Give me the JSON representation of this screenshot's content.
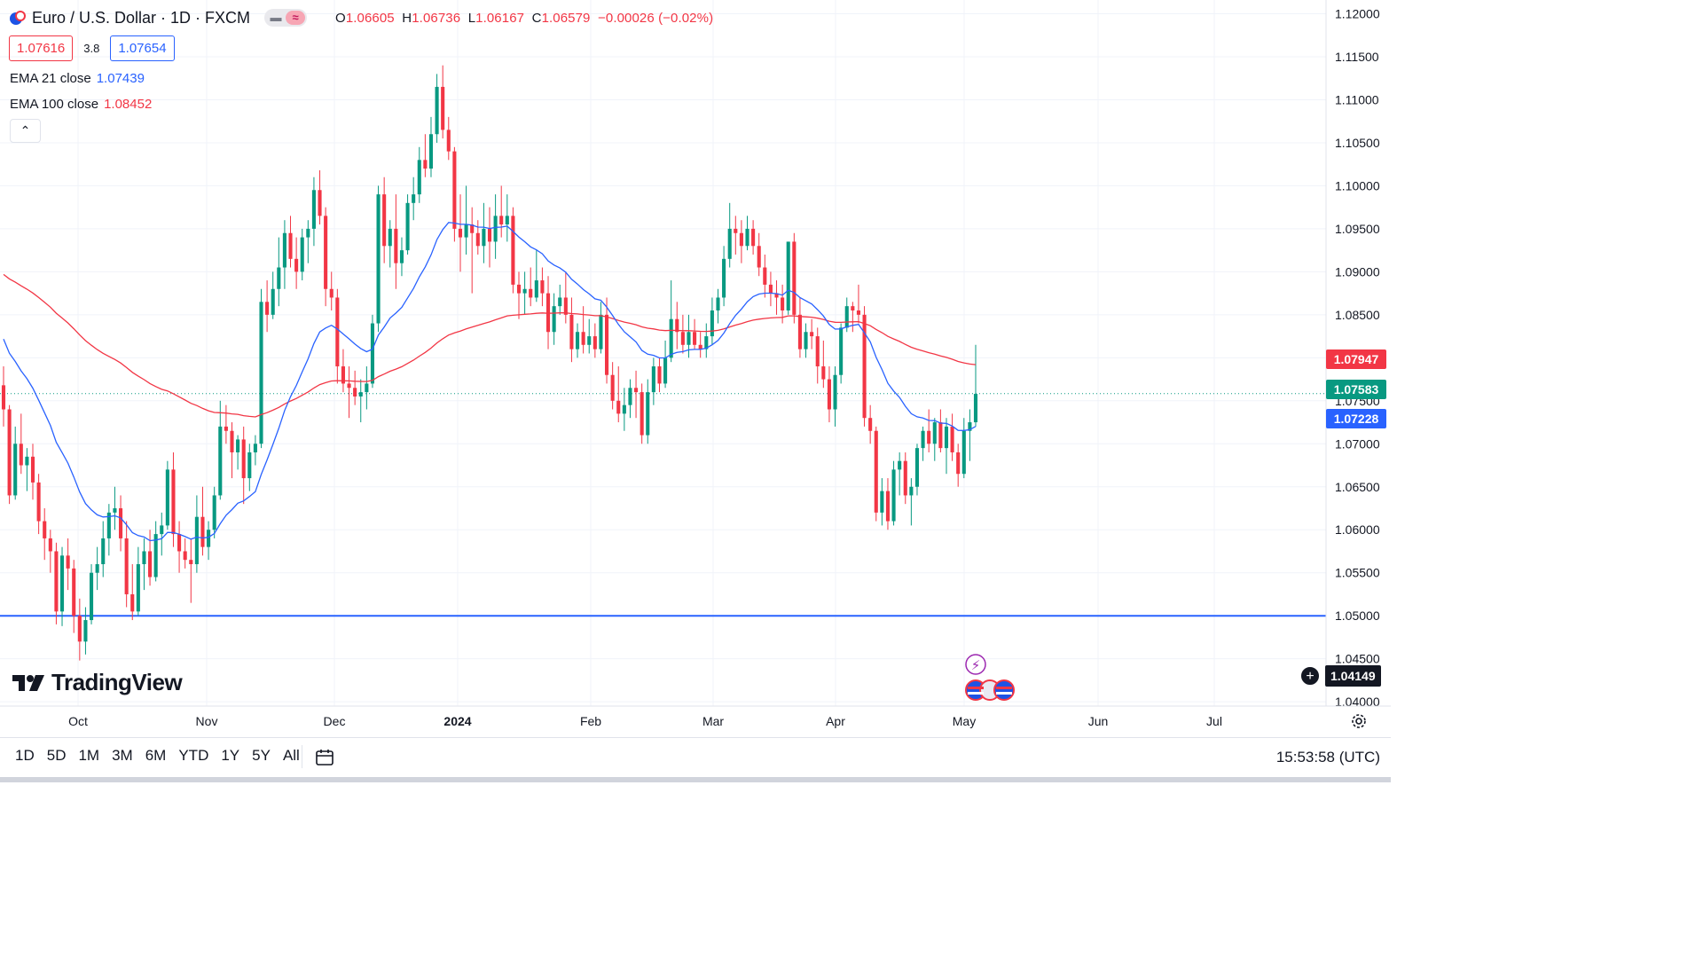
{
  "header": {
    "title": "Euro / U.S. Dollar · 1D · FXCM",
    "ohlc": {
      "o_label": "O",
      "o_value": "1.06605",
      "h_label": "H",
      "h_value": "1.06736",
      "l_label": "L",
      "l_value": "1.06167",
      "c_label": "C",
      "c_value": "1.06579",
      "change": "−0.00026 (−0.02%)"
    },
    "bid": "1.07616",
    "spread": "3.8",
    "ask": "1.07654",
    "pill_a": "▬",
    "pill_b": "≈"
  },
  "indicators": {
    "ema21_label": "EMA 21 close",
    "ema21_value": "1.07439",
    "ema100_label": "EMA 100 close",
    "ema100_value": "1.08452",
    "collapse_icon": "chevron-up-icon",
    "collapse_glyph": "⌃"
  },
  "price_tags": {
    "ema100": "1.07947",
    "last": "1.07583",
    "ema21": "1.07228",
    "crosshair": "1.04149"
  },
  "colors": {
    "up": "#089981",
    "down": "#f23645",
    "ema21": "#2962ff",
    "ema100": "#f23645",
    "hline": "#2962ff",
    "grid": "#f0f3fa"
  },
  "logo_text": "TradingView",
  "bottom": {
    "ranges": [
      "1D",
      "5D",
      "1M",
      "3M",
      "6M",
      "YTD",
      "1Y",
      "5Y",
      "All"
    ],
    "clock": "15:53:58 (UTC)"
  },
  "chart_data": {
    "type": "candlestick",
    "title": "Euro / U.S. Dollar · 1D · FXCM",
    "y_ticks": [
      "1.12000",
      "1.11500",
      "1.11000",
      "1.10500",
      "1.10000",
      "1.09500",
      "1.09000",
      "1.08500",
      "1.08000",
      "1.07500",
      "1.07000",
      "1.06500",
      "1.06000",
      "1.05500",
      "1.05000",
      "1.04500",
      "1.04000"
    ],
    "ylim": [
      1.0395,
      1.1216
    ],
    "x_ticks": [
      "Oct",
      "Nov",
      "Dec",
      "2024",
      "Feb",
      "Mar",
      "Apr",
      "May",
      "Jun",
      "Jul"
    ],
    "horizontal_line": 1.05,
    "last_price": 1.07583,
    "candles": [
      [
        1.0768,
        1.079,
        1.072,
        1.074
      ],
      [
        1.074,
        1.0745,
        1.063,
        1.064
      ],
      [
        1.064,
        1.072,
        1.0635,
        1.07
      ],
      [
        1.07,
        1.0735,
        1.0665,
        1.0675
      ],
      [
        1.0675,
        1.0695,
        1.0645,
        1.0685
      ],
      [
        1.0685,
        1.07,
        1.0635,
        1.0655
      ],
      [
        1.0655,
        1.0665,
        1.0595,
        1.061
      ],
      [
        1.061,
        1.0625,
        1.0565,
        1.059
      ],
      [
        1.059,
        1.06,
        1.055,
        1.0575
      ],
      [
        1.0575,
        1.0585,
        1.049,
        1.0505
      ],
      [
        1.0505,
        1.058,
        1.0488,
        1.057
      ],
      [
        1.057,
        1.059,
        1.053,
        1.0555
      ],
      [
        1.0555,
        1.0565,
        1.048,
        1.05
      ],
      [
        1.05,
        1.052,
        1.0448,
        1.047
      ],
      [
        1.047,
        1.051,
        1.0455,
        1.0495
      ],
      [
        1.0495,
        1.056,
        1.049,
        1.055
      ],
      [
        1.055,
        1.058,
        1.053,
        1.056
      ],
      [
        1.056,
        1.061,
        1.0545,
        1.059
      ],
      [
        1.059,
        1.063,
        1.057,
        1.062
      ],
      [
        1.062,
        1.065,
        1.06,
        1.0625
      ],
      [
        1.0625,
        1.064,
        1.0575,
        1.059
      ],
      [
        1.059,
        1.061,
        1.051,
        1.0525
      ],
      [
        1.0525,
        1.056,
        1.0495,
        1.0505
      ],
      [
        1.0505,
        1.058,
        1.05,
        1.056
      ],
      [
        1.056,
        1.059,
        1.053,
        1.0575
      ],
      [
        1.0575,
        1.06,
        1.0535,
        1.0545
      ],
      [
        1.0545,
        1.061,
        1.054,
        1.0595
      ],
      [
        1.0595,
        1.062,
        1.057,
        1.0605
      ],
      [
        1.0605,
        1.068,
        1.06,
        1.067
      ],
      [
        1.067,
        1.069,
        1.058,
        1.0595
      ],
      [
        1.0595,
        1.061,
        1.055,
        1.0575
      ],
      [
        1.0575,
        1.059,
        1.0555,
        1.0565
      ],
      [
        1.0565,
        1.059,
        1.0515,
        1.056
      ],
      [
        1.056,
        1.064,
        1.055,
        1.0615
      ],
      [
        1.0615,
        1.065,
        1.057,
        1.058
      ],
      [
        1.058,
        1.061,
        1.0565,
        1.06
      ],
      [
        1.06,
        1.065,
        1.059,
        1.064
      ],
      [
        1.064,
        1.075,
        1.0635,
        1.072
      ],
      [
        1.072,
        1.0745,
        1.07,
        1.0715
      ],
      [
        1.0715,
        1.0725,
        1.066,
        1.069
      ],
      [
        1.069,
        1.071,
        1.067,
        1.0705
      ],
      [
        1.0705,
        1.072,
        1.063,
        1.066
      ],
      [
        1.066,
        1.07,
        1.0645,
        1.069
      ],
      [
        1.069,
        1.071,
        1.0675,
        1.07
      ],
      [
        1.07,
        1.088,
        1.0695,
        1.0865
      ],
      [
        1.0865,
        1.089,
        1.083,
        1.085
      ],
      [
        1.085,
        1.09,
        1.0845,
        1.088
      ],
      [
        1.088,
        1.094,
        1.086,
        1.0905
      ],
      [
        1.0905,
        1.096,
        1.088,
        1.0945
      ],
      [
        1.0945,
        1.0965,
        1.0905,
        1.0915
      ],
      [
        1.0915,
        1.094,
        1.088,
        1.09
      ],
      [
        1.09,
        1.095,
        1.089,
        1.094
      ],
      [
        1.094,
        1.096,
        1.091,
        1.095
      ],
      [
        1.095,
        1.101,
        1.093,
        1.0995
      ],
      [
        1.0995,
        1.1018,
        1.0955,
        1.0965
      ],
      [
        1.0965,
        1.0975,
        1.086,
        1.088
      ],
      [
        1.088,
        1.09,
        1.0855,
        1.087
      ],
      [
        1.087,
        1.088,
        1.077,
        1.079
      ],
      [
        1.079,
        1.081,
        1.076,
        1.077
      ],
      [
        1.077,
        1.079,
        1.073,
        1.0765
      ],
      [
        1.0765,
        1.0785,
        1.0745,
        1.0755
      ],
      [
        1.0755,
        1.0775,
        1.0725,
        1.076
      ],
      [
        1.076,
        1.079,
        1.074,
        1.077
      ],
      [
        1.077,
        1.085,
        1.0765,
        1.084
      ],
      [
        1.084,
        1.1,
        1.083,
        1.099
      ],
      [
        1.099,
        1.101,
        1.091,
        1.093
      ],
      [
        1.093,
        1.096,
        1.0905,
        1.095
      ],
      [
        1.095,
        1.099,
        1.088,
        1.091
      ],
      [
        1.091,
        1.094,
        1.0895,
        1.0925
      ],
      [
        1.0925,
        1.099,
        1.092,
        1.098
      ],
      [
        1.098,
        1.101,
        1.096,
        1.099
      ],
      [
        1.099,
        1.1045,
        1.098,
        1.103
      ],
      [
        1.103,
        1.106,
        1.101,
        1.102
      ],
      [
        1.102,
        1.108,
        1.101,
        1.106
      ],
      [
        1.106,
        1.113,
        1.105,
        1.1115
      ],
      [
        1.1115,
        1.114,
        1.1055,
        1.1065
      ],
      [
        1.1065,
        1.108,
        1.103,
        1.104
      ],
      [
        1.104,
        1.1045,
        1.0935,
        1.095
      ],
      [
        1.095,
        1.099,
        1.09,
        1.094
      ],
      [
        1.094,
        1.1,
        1.092,
        1.0955
      ],
      [
        1.0955,
        1.0975,
        1.0875,
        1.0945
      ],
      [
        1.0945,
        1.096,
        1.092,
        1.093
      ],
      [
        1.093,
        1.098,
        1.091,
        1.095
      ],
      [
        1.095,
        1.0975,
        1.0905,
        1.0935
      ],
      [
        1.0935,
        1.099,
        1.0915,
        1.0965
      ],
      [
        1.0965,
        1.1,
        1.094,
        1.0955
      ],
      [
        1.0955,
        1.099,
        1.0935,
        1.0965
      ],
      [
        1.0965,
        1.0975,
        1.0875,
        1.0885
      ],
      [
        1.0885,
        1.09,
        1.0845,
        1.0875
      ],
      [
        1.0875,
        1.09,
        1.085,
        1.088
      ],
      [
        1.088,
        1.0905,
        1.086,
        1.087
      ],
      [
        1.087,
        1.0925,
        1.0865,
        1.089
      ],
      [
        1.089,
        1.0905,
        1.086,
        1.0875
      ],
      [
        1.0875,
        1.0895,
        1.081,
        1.083
      ],
      [
        1.083,
        1.0875,
        1.0815,
        1.086
      ],
      [
        1.086,
        1.0885,
        1.085,
        1.087
      ],
      [
        1.087,
        1.09,
        1.084,
        1.085
      ],
      [
        1.085,
        1.087,
        1.0795,
        1.081
      ],
      [
        1.081,
        1.084,
        1.08,
        1.083
      ],
      [
        1.083,
        1.086,
        1.0805,
        1.0815
      ],
      [
        1.0815,
        1.0845,
        1.0805,
        1.0825
      ],
      [
        1.0825,
        1.084,
        1.08,
        1.081
      ],
      [
        1.081,
        1.0865,
        1.0805,
        1.085
      ],
      [
        1.085,
        1.087,
        1.077,
        1.078
      ],
      [
        1.078,
        1.0795,
        1.074,
        1.075
      ],
      [
        1.075,
        1.079,
        1.0725,
        1.0735
      ],
      [
        1.0735,
        1.0765,
        1.0715,
        1.0745
      ],
      [
        1.0745,
        1.0775,
        1.073,
        1.0765
      ],
      [
        1.0765,
        1.0785,
        1.073,
        1.076
      ],
      [
        1.076,
        1.077,
        1.07,
        1.071
      ],
      [
        1.071,
        1.0775,
        1.07,
        1.076
      ],
      [
        1.076,
        1.08,
        1.0745,
        1.079
      ],
      [
        1.079,
        1.08,
        1.076,
        1.077
      ],
      [
        1.077,
        1.082,
        1.0765,
        1.08
      ],
      [
        1.08,
        1.089,
        1.0795,
        1.0845
      ],
      [
        1.0845,
        1.0865,
        1.081,
        1.083
      ],
      [
        1.083,
        1.085,
        1.0805,
        1.0815
      ],
      [
        1.0815,
        1.085,
        1.08,
        1.083
      ],
      [
        1.083,
        1.0845,
        1.081,
        1.0815
      ],
      [
        1.0815,
        1.083,
        1.08,
        1.081
      ],
      [
        1.081,
        1.084,
        1.08,
        1.0825
      ],
      [
        1.0825,
        1.087,
        1.0815,
        1.0855
      ],
      [
        1.0855,
        1.088,
        1.084,
        1.087
      ],
      [
        1.087,
        1.093,
        1.086,
        1.0915
      ],
      [
        1.0915,
        1.098,
        1.0905,
        1.095
      ],
      [
        1.095,
        1.0965,
        1.092,
        1.0945
      ],
      [
        1.0945,
        1.096,
        1.091,
        1.093
      ],
      [
        1.093,
        1.0965,
        1.0925,
        1.095
      ],
      [
        1.095,
        1.096,
        1.092,
        1.093
      ],
      [
        1.093,
        1.0945,
        1.0895,
        1.0905
      ],
      [
        1.0905,
        1.092,
        1.087,
        1.0885
      ],
      [
        1.0885,
        1.09,
        1.086,
        1.0875
      ],
      [
        1.0875,
        1.089,
        1.085,
        1.087
      ],
      [
        1.087,
        1.0885,
        1.084,
        1.0855
      ],
      [
        1.0855,
        1.0935,
        1.085,
        1.0935
      ],
      [
        1.0935,
        1.0945,
        1.084,
        1.085
      ],
      [
        1.085,
        1.087,
        1.08,
        1.081
      ],
      [
        1.081,
        1.084,
        1.08,
        1.083
      ],
      [
        1.083,
        1.0845,
        1.081,
        1.0825
      ],
      [
        1.0825,
        1.0835,
        1.077,
        1.079
      ],
      [
        1.079,
        1.082,
        1.0765,
        1.0775
      ],
      [
        1.0775,
        1.079,
        1.0725,
        1.074
      ],
      [
        1.074,
        1.079,
        1.072,
        1.078
      ],
      [
        1.078,
        1.084,
        1.077,
        1.0835
      ],
      [
        1.0835,
        1.087,
        1.083,
        1.086
      ],
      [
        1.086,
        1.0865,
        1.083,
        1.0855
      ],
      [
        1.0855,
        1.0885,
        1.084,
        1.085
      ],
      [
        1.085,
        1.086,
        1.072,
        1.073
      ],
      [
        1.073,
        1.0745,
        1.07,
        1.0715
      ],
      [
        1.0715,
        1.072,
        1.061,
        1.062
      ],
      [
        1.062,
        1.066,
        1.0605,
        1.0645
      ],
      [
        1.0645,
        1.066,
        1.06,
        1.061
      ],
      [
        1.061,
        1.068,
        1.0605,
        1.067
      ],
      [
        1.067,
        1.069,
        1.064,
        1.068
      ],
      [
        1.068,
        1.069,
        1.063,
        1.064
      ],
      [
        1.064,
        1.066,
        1.0605,
        1.065
      ],
      [
        1.065,
        1.07,
        1.064,
        1.0695
      ],
      [
        1.0695,
        1.072,
        1.068,
        1.0715
      ],
      [
        1.0715,
        1.074,
        1.069,
        1.07
      ],
      [
        1.07,
        1.073,
        1.068,
        1.0725
      ],
      [
        1.0725,
        1.074,
        1.069,
        1.0695
      ],
      [
        1.0695,
        1.073,
        1.0665,
        1.072
      ],
      [
        1.072,
        1.0735,
        1.068,
        1.069
      ],
      [
        1.069,
        1.07,
        1.065,
        1.0665
      ],
      [
        1.0665,
        1.073,
        1.066,
        1.0715
      ],
      [
        1.0715,
        1.074,
        1.068,
        1.0725
      ],
      [
        1.0725,
        1.0815,
        1.072,
        1.0758
      ]
    ]
  }
}
